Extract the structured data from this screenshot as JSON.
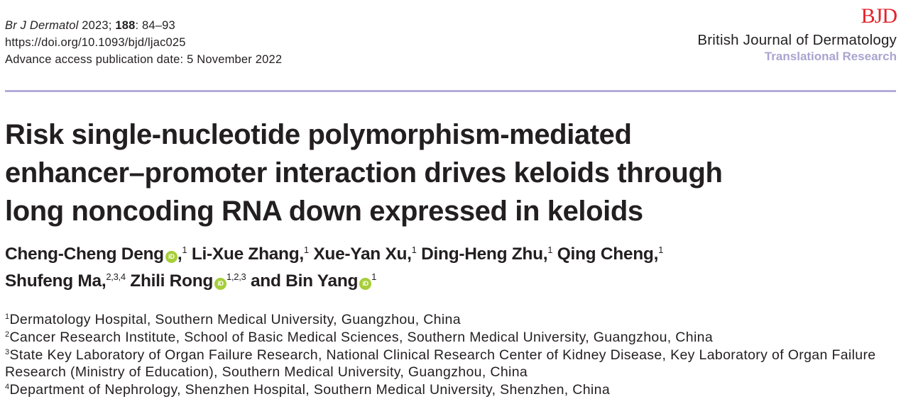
{
  "citation": {
    "journal_abbrev": "Br J Dermatol",
    "year_sep": " 2023; ",
    "volume": "188",
    "pages": ": 84–93",
    "doi": "https://doi.org/10.1093/bjd/ljac025",
    "advance_access": "Advance access publication date: 5 November 2022"
  },
  "brand": {
    "logo": "BJD",
    "journal_name": "British Journal of Dermatology",
    "section": "Translational Research",
    "logo_color": "#e3232b",
    "section_color": "#a9a4d0"
  },
  "title_lines": [
    "Risk single-nucleotide polymorphism-mediated",
    "enhancer–promoter interaction drives keloids through",
    "long noncoding RNA down expressed in keloids"
  ],
  "orcid_icon_label": "iD",
  "authors": [
    {
      "name": "Cheng-Cheng Deng",
      "orcid": true,
      "sup": "1"
    },
    {
      "name": "Li-Xue Zhang",
      "orcid": false,
      "sup": "1"
    },
    {
      "name": "Xue-Yan Xu",
      "orcid": false,
      "sup": "1"
    },
    {
      "name": "Ding-Heng Zhu",
      "orcid": false,
      "sup": "1"
    },
    {
      "name": "Qing Cheng",
      "orcid": false,
      "sup": "1"
    },
    {
      "name": "Shufeng Ma",
      "orcid": false,
      "sup": "2,3,4"
    },
    {
      "name": "Zhili Rong",
      "orcid": true,
      "sup": "1,2,3"
    },
    {
      "name": "Bin Yang",
      "orcid": true,
      "sup": "1"
    }
  ],
  "and_word": "and",
  "affiliations": [
    {
      "num": "1",
      "text": "Dermatology Hospital, Southern Medical University, Guangzhou, China"
    },
    {
      "num": "2",
      "text": "Cancer Research Institute, School of Basic Medical Sciences, Southern Medical University, Guangzhou, China"
    },
    {
      "num": "3",
      "text": "State Key Laboratory of Organ Failure Research, National Clinical Research Center of Kidney Disease, Key Laboratory of Organ Failure Research (Ministry of Education), Southern Medical University, Guangzhou, China"
    },
    {
      "num": "4",
      "text": "Department of Nephrology, Shenzhen Hospital, Southern Medical University, Shenzhen, China"
    }
  ]
}
